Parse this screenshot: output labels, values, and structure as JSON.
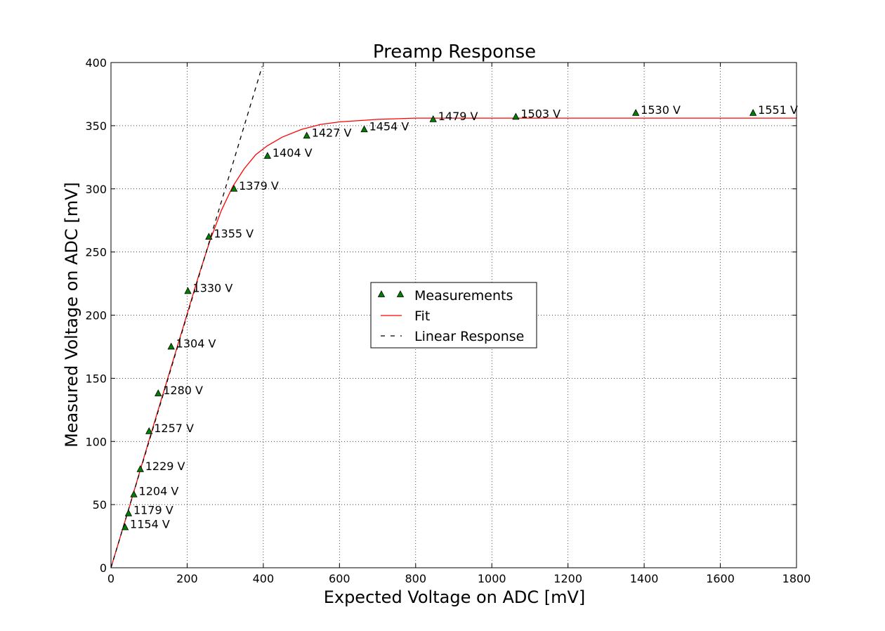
{
  "chart_data": {
    "type": "scatter",
    "title": "Preamp Response",
    "xlabel": "Expected Voltage on ADC [mV]",
    "ylabel": "Measured Voltage on ADC [mV]",
    "xlim": [
      0,
      1800
    ],
    "ylim": [
      0,
      400
    ],
    "xticks": [
      0,
      200,
      400,
      600,
      800,
      1000,
      1200,
      1400,
      1600,
      1800
    ],
    "yticks": [
      0,
      50,
      100,
      150,
      200,
      250,
      300,
      350,
      400
    ],
    "grid": true,
    "legend_placement": "center",
    "colors": {
      "marker_fill": "#007f00",
      "marker_edge": "#000000",
      "fit": "#ff0000",
      "linear": "#000000"
    },
    "series": [
      {
        "name": "Measurements",
        "kind": "markers",
        "marker": "triangle",
        "points": [
          {
            "x": 37,
            "y": 32,
            "label": "1154 V"
          },
          {
            "x": 46,
            "y": 43,
            "label": "1179 V"
          },
          {
            "x": 60,
            "y": 58,
            "label": "1204 V"
          },
          {
            "x": 77,
            "y": 78,
            "label": "1229 V"
          },
          {
            "x": 100,
            "y": 108,
            "label": "1257 V"
          },
          {
            "x": 124,
            "y": 138,
            "label": "1280 V"
          },
          {
            "x": 158,
            "y": 175,
            "label": "1304 V"
          },
          {
            "x": 202,
            "y": 219,
            "label": "1330 V"
          },
          {
            "x": 257,
            "y": 262,
            "label": "1355 V"
          },
          {
            "x": 323,
            "y": 300,
            "label": "1379 V"
          },
          {
            "x": 411,
            "y": 326,
            "label": "1404 V"
          },
          {
            "x": 514,
            "y": 342,
            "label": "1427 V"
          },
          {
            "x": 665,
            "y": 347,
            "label": "1454 V"
          },
          {
            "x": 846,
            "y": 355,
            "label": "1479 V"
          },
          {
            "x": 1063,
            "y": 357,
            "label": "1503 V"
          },
          {
            "x": 1378,
            "y": 360,
            "label": "1530 V"
          },
          {
            "x": 1686,
            "y": 360,
            "label": "1551 V"
          }
        ]
      },
      {
        "name": "Fit",
        "kind": "line",
        "style": "solid",
        "x": [
          0,
          50,
          100,
          150,
          200,
          230,
          260,
          290,
          320,
          350,
          380,
          410,
          450,
          500,
          550,
          600,
          700,
          800,
          900,
          1000,
          1200,
          1400,
          1600,
          1800
        ],
        "y": [
          0,
          50,
          101,
          151,
          201,
          231,
          259,
          283,
          302,
          316,
          327,
          334,
          341,
          347,
          351,
          353,
          355,
          356,
          356,
          356,
          356,
          356,
          356,
          356
        ]
      },
      {
        "name": "Linear Response",
        "kind": "line",
        "style": "dashed",
        "x": [
          0,
          397
        ],
        "y": [
          0,
          397
        ]
      }
    ]
  }
}
